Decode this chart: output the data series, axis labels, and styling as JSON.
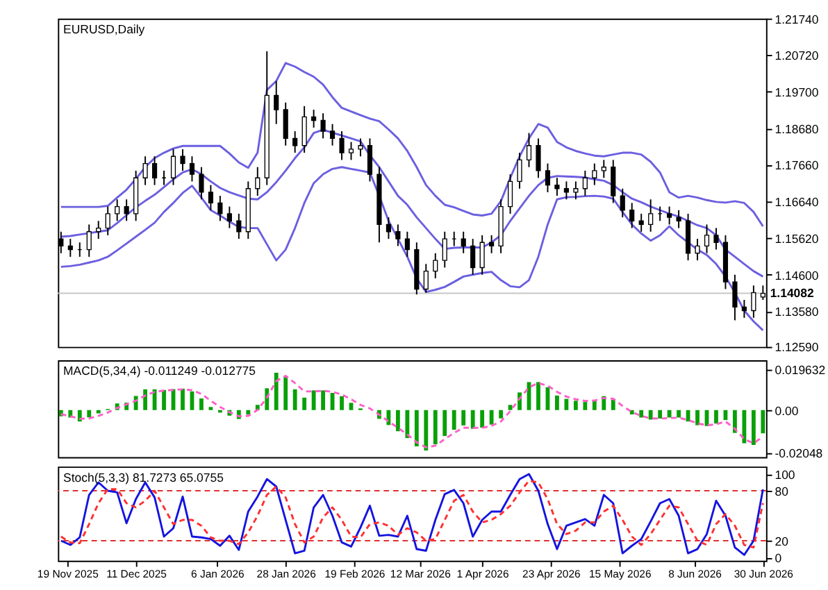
{
  "chart_data": [
    {
      "type": "candlestick",
      "title": "EURUSD,Daily",
      "x": [
        "2025-11-17",
        "2025-11-20",
        "2025-11-23",
        "2025-11-26",
        "2025-11-29",
        "2025-12-02",
        "2025-12-05",
        "2025-12-08",
        "2025-12-11",
        "2025-12-14",
        "2025-12-17",
        "2025-12-20",
        "2025-12-23",
        "2025-12-26",
        "2025-12-29",
        "2026-01-01",
        "2026-01-04",
        "2026-01-07",
        "2026-01-10",
        "2026-01-13",
        "2026-01-16",
        "2026-01-19",
        "2026-01-22",
        "2026-01-25",
        "2026-01-28",
        "2026-01-31",
        "2026-02-03",
        "2026-02-06",
        "2026-02-09",
        "2026-02-12",
        "2026-02-15",
        "2026-02-18",
        "2026-02-21",
        "2026-02-24",
        "2026-02-27",
        "2026-03-02",
        "2026-03-05",
        "2026-03-08",
        "2026-03-11",
        "2026-03-14",
        "2026-03-17",
        "2026-03-20",
        "2026-03-23",
        "2026-03-26",
        "2026-03-29",
        "2026-04-01",
        "2026-04-04",
        "2026-04-07",
        "2026-04-10",
        "2026-04-13",
        "2026-04-16",
        "2026-04-19",
        "2026-04-22",
        "2026-04-25",
        "2026-04-28",
        "2026-05-01",
        "2026-05-04",
        "2026-05-07",
        "2026-05-10",
        "2026-05-13",
        "2026-05-16",
        "2026-05-19",
        "2026-05-22",
        "2026-05-25",
        "2026-05-28",
        "2026-05-31",
        "2026-06-03",
        "2026-06-06",
        "2026-06-09",
        "2026-06-12",
        "2026-06-15",
        "2026-06-18",
        "2026-06-21",
        "2026-06-24",
        "2026-06-27",
        "2026-06-30"
      ],
      "xlim": [
        "2025-11-16",
        "2026-07-01"
      ],
      "ohlc": [
        [
          1.156,
          1.158,
          1.152,
          1.154
        ],
        [
          1.154,
          1.156,
          1.151,
          1.153
        ],
        [
          1.153,
          1.155,
          1.151,
          1.153
        ],
        [
          1.153,
          1.16,
          1.151,
          1.158
        ],
        [
          1.158,
          1.161,
          1.156,
          1.159
        ],
        [
          1.159,
          1.165,
          1.157,
          1.163
        ],
        [
          1.163,
          1.167,
          1.161,
          1.165
        ],
        [
          1.165,
          1.167,
          1.161,
          1.163
        ],
        [
          1.163,
          1.175,
          1.161,
          1.173
        ],
        [
          1.173,
          1.179,
          1.171,
          1.177
        ],
        [
          1.177,
          1.179,
          1.171,
          1.173
        ],
        [
          1.173,
          1.175,
          1.171,
          1.173
        ],
        [
          1.173,
          1.181,
          1.171,
          1.179
        ],
        [
          1.179,
          1.181,
          1.175,
          1.177
        ],
        [
          1.177,
          1.179,
          1.172,
          1.174
        ],
        [
          1.174,
          1.176,
          1.167,
          1.169
        ],
        [
          1.169,
          1.171,
          1.164,
          1.166
        ],
        [
          1.166,
          1.168,
          1.161,
          1.163
        ],
        [
          1.163,
          1.165,
          1.159,
          1.161
        ],
        [
          1.161,
          1.163,
          1.156,
          1.158
        ],
        [
          1.158,
          1.172,
          1.156,
          1.17
        ],
        [
          1.17,
          1.176,
          1.168,
          1.173
        ],
        [
          1.173,
          1.2083,
          1.171,
          1.196
        ],
        [
          1.196,
          1.2,
          1.188,
          1.192
        ],
        [
          1.192,
          1.194,
          1.182,
          1.184
        ],
        [
          1.184,
          1.186,
          1.18,
          1.182
        ],
        [
          1.182,
          1.193,
          1.18,
          1.19
        ],
        [
          1.19,
          1.192,
          1.187,
          1.189
        ],
        [
          1.189,
          1.191,
          1.184,
          1.186
        ],
        [
          1.186,
          1.188,
          1.182,
          1.184
        ],
        [
          1.184,
          1.186,
          1.178,
          1.18
        ],
        [
          1.18,
          1.183,
          1.178,
          1.181
        ],
        [
          1.181,
          1.184,
          1.179,
          1.182
        ],
        [
          1.182,
          1.184,
          1.172,
          1.174
        ],
        [
          1.174,
          1.176,
          1.155,
          1.16
        ],
        [
          1.16,
          1.162,
          1.156,
          1.158
        ],
        [
          1.158,
          1.16,
          1.154,
          1.156
        ],
        [
          1.156,
          1.158,
          1.151,
          1.153
        ],
        [
          1.153,
          1.155,
          1.1405,
          1.142
        ],
        [
          1.142,
          1.149,
          1.141,
          1.147
        ],
        [
          1.147,
          1.152,
          1.145,
          1.15
        ],
        [
          1.15,
          1.158,
          1.148,
          1.156
        ],
        [
          1.156,
          1.158,
          1.154,
          1.156
        ],
        [
          1.156,
          1.158,
          1.152,
          1.154
        ],
        [
          1.154,
          1.156,
          1.146,
          1.148
        ],
        [
          1.148,
          1.157,
          1.146,
          1.155
        ],
        [
          1.155,
          1.157,
          1.152,
          1.154
        ],
        [
          1.154,
          1.167,
          1.152,
          1.165
        ],
        [
          1.165,
          1.174,
          1.163,
          1.172
        ],
        [
          1.172,
          1.18,
          1.17,
          1.178
        ],
        [
          1.178,
          1.1855,
          1.176,
          1.182
        ],
        [
          1.182,
          1.184,
          1.173,
          1.175
        ],
        [
          1.175,
          1.177,
          1.169,
          1.171
        ],
        [
          1.171,
          1.173,
          1.168,
          1.17
        ],
        [
          1.17,
          1.172,
          1.167,
          1.169
        ],
        [
          1.169,
          1.172,
          1.167,
          1.17
        ],
        [
          1.17,
          1.175,
          1.168,
          1.173
        ],
        [
          1.173,
          1.177,
          1.171,
          1.175
        ],
        [
          1.175,
          1.178,
          1.173,
          1.176
        ],
        [
          1.176,
          1.178,
          1.166,
          1.168
        ],
        [
          1.168,
          1.17,
          1.162,
          1.164
        ],
        [
          1.164,
          1.166,
          1.159,
          1.161
        ],
        [
          1.161,
          1.163,
          1.158,
          1.16
        ],
        [
          1.16,
          1.167,
          1.158,
          1.163
        ],
        [
          1.163,
          1.165,
          1.161,
          1.163
        ],
        [
          1.163,
          1.165,
          1.16,
          1.162
        ],
        [
          1.162,
          1.164,
          1.159,
          1.161
        ],
        [
          1.161,
          1.163,
          1.15,
          1.152
        ],
        [
          1.152,
          1.156,
          1.15,
          1.154
        ],
        [
          1.154,
          1.16,
          1.152,
          1.157
        ],
        [
          1.157,
          1.159,
          1.153,
          1.155
        ],
        [
          1.155,
          1.157,
          1.142,
          1.144
        ],
        [
          1.144,
          1.146,
          1.1333,
          1.137
        ],
        [
          1.137,
          1.139,
          1.134,
          1.136
        ],
        [
          1.136,
          1.143,
          1.134,
          1.141
        ],
        [
          1.1398,
          1.143,
          1.139,
          1.1408
        ]
      ],
      "series": [
        {
          "type": "line",
          "color": "#6b5fe0",
          "values": [
            1.1649,
            1.1649,
            1.1649,
            1.1649,
            1.1649,
            1.1652,
            1.1675,
            1.1697,
            1.1727,
            1.176,
            1.1785,
            1.18,
            1.1812,
            1.1819,
            1.1819,
            1.1819,
            1.1819,
            1.1819,
            1.1798,
            1.1773,
            1.1758,
            1.18,
            1.1975,
            1.2,
            1.205,
            1.204,
            1.2025,
            1.2012,
            1.199,
            1.1955,
            1.1925,
            1.1915,
            1.1905,
            1.1895,
            1.1888,
            1.1865,
            1.184,
            1.1805,
            1.176,
            1.171,
            1.168,
            1.1655,
            1.1648,
            1.1638,
            1.1628,
            1.1625,
            1.163,
            1.1665,
            1.173,
            1.179,
            1.184,
            1.188,
            1.187,
            1.183,
            1.1815,
            1.1805,
            1.1798,
            1.1792,
            1.179,
            1.1795,
            1.18,
            1.18,
            1.1795,
            1.1775,
            1.1745,
            1.169,
            1.1675,
            1.168,
            1.1675,
            1.1668,
            1.1663,
            1.1661,
            1.1665,
            1.166,
            1.1635,
            1.1595
          ]
        },
        {
          "type": "line",
          "color": "#6b5fe0",
          "values": [
            1.1566,
            1.1568,
            1.1572,
            1.1576,
            1.158,
            1.1584,
            1.1604,
            1.1626,
            1.1648,
            1.1666,
            1.1683,
            1.1704,
            1.1726,
            1.1745,
            1.1754,
            1.174,
            1.172,
            1.1702,
            1.169,
            1.1681,
            1.1672,
            1.167,
            1.169,
            1.1718,
            1.175,
            1.1785,
            1.1815,
            1.1855,
            1.1864,
            1.1856,
            1.1848,
            1.184,
            1.1832,
            1.1793,
            1.176,
            1.172,
            1.168,
            1.1655,
            1.162,
            1.159,
            1.156,
            1.1532,
            1.1535,
            1.1536,
            1.1536,
            1.1536,
            1.155,
            1.157,
            1.161,
            1.1645,
            1.168,
            1.171,
            1.173,
            1.1735,
            1.1734,
            1.1733,
            1.1731,
            1.1726,
            1.1722,
            1.171,
            1.169,
            1.1672,
            1.1662,
            1.165,
            1.164,
            1.163,
            1.1622,
            1.161,
            1.1598,
            1.159,
            1.157,
            1.153,
            1.151,
            1.149,
            1.147,
            1.1455
          ]
        },
        {
          "type": "line",
          "color": "#6b5fe0",
          "values": [
            1.1482,
            1.1484,
            1.1488,
            1.1494,
            1.15,
            1.151,
            1.1528,
            1.1547,
            1.1566,
            1.1585,
            1.1605,
            1.1635,
            1.166,
            1.1688,
            1.1708,
            1.1675,
            1.164,
            1.1625,
            1.1608,
            1.1593,
            1.159,
            1.159,
            1.1545,
            1.15,
            1.153,
            1.159,
            1.166,
            1.1715,
            1.174,
            1.1755,
            1.176,
            1.1755,
            1.175,
            1.1745,
            1.168,
            1.161,
            1.156,
            1.151,
            1.145,
            1.1412,
            1.1418,
            1.1426,
            1.144,
            1.1455,
            1.146,
            1.1465,
            1.1468,
            1.1445,
            1.1428,
            1.1425,
            1.1445,
            1.151,
            1.16,
            1.167,
            1.1676,
            1.1677,
            1.1679,
            1.168,
            1.1678,
            1.1672,
            1.1635,
            1.16,
            1.1575,
            1.1555,
            1.157,
            1.1595,
            1.157,
            1.155,
            1.153,
            1.1515,
            1.149,
            1.1455,
            1.141,
            1.136,
            1.133,
            1.1305
          ]
        }
      ],
      "ylim": [
        1.1259,
        1.2174
      ],
      "yticks": [
        {
          "value": 1.2174,
          "label": "1.21740"
        },
        {
          "value": 1.2072,
          "label": "1.20720"
        },
        {
          "value": 1.197,
          "label": "1.19700"
        },
        {
          "value": 1.1868,
          "label": "1.18680"
        },
        {
          "value": 1.1766,
          "label": "1.17660"
        },
        {
          "value": 1.1664,
          "label": "1.16640"
        },
        {
          "value": 1.1562,
          "label": "1.15620"
        },
        {
          "value": 1.146,
          "label": "1.14600"
        },
        {
          "value": 1.1358,
          "label": "1.13580"
        },
        {
          "value": 1.1259,
          "label": "1.12590"
        }
      ],
      "ref_lines": [
        {
          "axis": "y",
          "value": 1.14082,
          "label": "1.14082",
          "color": "#c8c8c8"
        }
      ],
      "tick_labels": "y"
    },
    {
      "type": "bar",
      "title": "MACD(5,34,4) -0.011249 -0.012775",
      "x": [
        "2025-11-17",
        "2025-11-20",
        "2025-11-23",
        "2025-11-26",
        "2025-11-29",
        "2025-12-02",
        "2025-12-05",
        "2025-12-08",
        "2025-12-11",
        "2025-12-14",
        "2025-12-17",
        "2025-12-20",
        "2025-12-23",
        "2025-12-26",
        "2025-12-29",
        "2026-01-01",
        "2026-01-04",
        "2026-01-07",
        "2026-01-10",
        "2026-01-13",
        "2026-01-16",
        "2026-01-19",
        "2026-01-22",
        "2026-01-25",
        "2026-01-28",
        "2026-01-31",
        "2026-02-03",
        "2026-02-06",
        "2026-02-09",
        "2026-02-12",
        "2026-02-15",
        "2026-02-18",
        "2026-02-21",
        "2026-02-24",
        "2026-02-27",
        "2026-03-02",
        "2026-03-05",
        "2026-03-08",
        "2026-03-11",
        "2026-03-14",
        "2026-03-17",
        "2026-03-20",
        "2026-03-23",
        "2026-03-26",
        "2026-03-29",
        "2026-04-01",
        "2026-04-04",
        "2026-04-07",
        "2026-04-10",
        "2026-04-13",
        "2026-04-16",
        "2026-04-19",
        "2026-04-22",
        "2026-04-25",
        "2026-04-28",
        "2026-05-01",
        "2026-05-04",
        "2026-05-07",
        "2026-05-10",
        "2026-05-13",
        "2026-05-16",
        "2026-05-19",
        "2026-05-22",
        "2026-05-25",
        "2026-05-28",
        "2026-05-31",
        "2026-06-03",
        "2026-06-06",
        "2026-06-09",
        "2026-06-12",
        "2026-06-15",
        "2026-06-18",
        "2026-06-21",
        "2026-06-24",
        "2026-06-27",
        "2026-06-30"
      ],
      "xlim": [
        "2025-11-16",
        "2026-07-01"
      ],
      "series": [
        {
          "type": "bar",
          "color": "#08a008",
          "values": [
            -0.003,
            -0.0036,
            -0.0055,
            -0.0035,
            -0.0016,
            0.0005,
            0.0032,
            0.0036,
            0.0068,
            0.01,
            0.01,
            0.0097,
            0.0101,
            0.0103,
            0.009,
            0.0056,
            0.0015,
            -0.0012,
            -0.0027,
            -0.0043,
            -0.0022,
            0.0025,
            0.0105,
            0.018,
            0.016,
            0.01,
            0.006,
            0.0095,
            0.0095,
            0.0083,
            0.0067,
            0.0035,
            0.0008,
            0.0,
            -0.0042,
            -0.0072,
            -0.0102,
            -0.0135,
            -0.0175,
            -0.0195,
            -0.0165,
            -0.0125,
            -0.0095,
            -0.0074,
            -0.009,
            -0.0085,
            -0.007,
            -0.004,
            0.0025,
            0.0085,
            0.0135,
            0.0135,
            0.011,
            0.007,
            0.0054,
            0.0045,
            0.0039,
            0.0048,
            0.0067,
            0.005,
            null,
            -0.0021,
            -0.0036,
            -0.0046,
            -0.0041,
            -0.0036,
            -0.0036,
            -0.0055,
            -0.0073,
            -0.0077,
            -0.0065,
            -0.0048,
            -0.011,
            -0.016,
            -0.0168,
            -0.0112
          ]
        },
        {
          "type": "line",
          "color": "#ff5fc8",
          "line_style": "dashed",
          "values": [
            -0.002,
            -0.003,
            -0.0042,
            -0.004,
            -0.0028,
            -0.0012,
            0.001,
            0.0028,
            0.0045,
            0.007,
            0.0088,
            0.0094,
            0.0097,
            0.01,
            0.0096,
            0.0078,
            0.0045,
            0.0015,
            -0.001,
            -0.003,
            -0.0028,
            0.0,
            0.006,
            0.014,
            0.0165,
            0.013,
            0.009,
            0.009,
            0.0093,
            0.0088,
            0.0075,
            0.0052,
            0.0025,
            0.0008,
            -0.0022,
            -0.0055,
            -0.0085,
            -0.0118,
            -0.0155,
            -0.018,
            -0.0172,
            -0.014,
            -0.011,
            -0.0085,
            -0.0085,
            -0.0086,
            -0.0076,
            -0.0055,
            -0.0005,
            0.0055,
            0.011,
            0.013,
            0.0118,
            0.0088,
            0.0065,
            0.0052,
            0.0044,
            0.0046,
            0.0058,
            0.0055,
            0.002,
            -0.001,
            -0.0028,
            -0.004,
            -0.0041,
            -0.0038,
            -0.0037,
            -0.0048,
            -0.0064,
            -0.0073,
            -0.0069,
            -0.0055,
            -0.009,
            -0.014,
            -0.016,
            -0.0128
          ]
        }
      ],
      "ylim": [
        -0.0227,
        0.024
      ],
      "yticks": [
        0.019632,
        {
          "value": 0,
          "label": "0.00"
        },
        -0.02048
      ],
      "tick_labels": "y"
    },
    {
      "type": "line",
      "title": "Stoch(5,3,3) 81.7273 65.0755",
      "x": [
        "2025-11-17",
        "2025-11-20",
        "2025-11-23",
        "2025-11-26",
        "2025-11-29",
        "2025-12-02",
        "2025-12-05",
        "2025-12-08",
        "2025-12-11",
        "2025-12-14",
        "2025-12-17",
        "2025-12-20",
        "2025-12-23",
        "2025-12-26",
        "2025-12-29",
        "2026-01-01",
        "2026-01-04",
        "2026-01-07",
        "2026-01-10",
        "2026-01-13",
        "2026-01-16",
        "2026-01-19",
        "2026-01-22",
        "2026-01-25",
        "2026-01-28",
        "2026-01-31",
        "2026-02-03",
        "2026-02-06",
        "2026-02-09",
        "2026-02-12",
        "2026-02-15",
        "2026-02-18",
        "2026-02-21",
        "2026-02-24",
        "2026-02-27",
        "2026-03-02",
        "2026-03-05",
        "2026-03-08",
        "2026-03-11",
        "2026-03-14",
        "2026-03-17",
        "2026-03-20",
        "2026-03-23",
        "2026-03-26",
        "2026-03-29",
        "2026-04-01",
        "2026-04-04",
        "2026-04-07",
        "2026-04-10",
        "2026-04-13",
        "2026-04-16",
        "2026-04-19",
        "2026-04-22",
        "2026-04-25",
        "2026-04-28",
        "2026-05-01",
        "2026-05-04",
        "2026-05-07",
        "2026-05-10",
        "2026-05-13",
        "2026-05-16",
        "2026-05-19",
        "2026-05-22",
        "2026-05-25",
        "2026-05-28",
        "2026-05-31",
        "2026-06-03",
        "2026-06-06",
        "2026-06-09",
        "2026-06-12",
        "2026-06-15",
        "2026-06-18",
        "2026-06-21",
        "2026-06-24",
        "2026-06-27",
        "2026-06-30"
      ],
      "xlim": [
        "2025-11-16",
        "2026-07-01"
      ],
      "xticks": [
        {
          "value": "2025-11-19",
          "label": "19 Nov 2025"
        },
        {
          "value": "2025-12-11",
          "label": "11 Dec 2025"
        },
        {
          "value": "2026-01-06",
          "label": "6 Jan 2026"
        },
        {
          "value": "2026-01-28",
          "label": "28 Jan 2026"
        },
        {
          "value": "2026-02-19",
          "label": "19 Feb 2026"
        },
        {
          "value": "2026-03-12",
          "label": "12 Mar 2026"
        },
        {
          "value": "2026-04-01",
          "label": "1 Apr 2026"
        },
        {
          "value": "2026-04-23",
          "label": "23 Apr 2026"
        },
        {
          "value": "2026-05-15",
          "label": "15 May 2026"
        },
        {
          "value": "2026-06-08",
          "label": "8 Jun 2026"
        },
        {
          "value": "2026-06-30",
          "label": "30 Jun 2026"
        }
      ],
      "series": [
        {
          "color": "#1414e0",
          "values": [
            20,
            15,
            24,
            75,
            90,
            80,
            78,
            41,
            70,
            90,
            72,
            25,
            35,
            73,
            25,
            24,
            22,
            14,
            26,
            9,
            55,
            73,
            94,
            85,
            45,
            5,
            8,
            60,
            75,
            50,
            18,
            13,
            36,
            62,
            26,
            27,
            25,
            50,
            10,
            8,
            45,
            76,
            81,
            65,
            25,
            45,
            55,
            55,
            75,
            94,
            100,
            80,
            40,
            10,
            38,
            42,
            46,
            38,
            75,
            65,
            5,
            14,
            22,
            43,
            65,
            70,
            50,
            5,
            10,
            28,
            68,
            50,
            12,
            3,
            20,
            81.7
          ]
        },
        {
          "color": "#ff3030",
          "line_style": "dashed",
          "values": [
            25,
            18,
            17,
            40,
            65,
            82,
            82,
            65,
            60,
            68,
            80,
            60,
            40,
            45,
            45,
            38,
            24,
            20,
            20,
            16,
            30,
            50,
            75,
            85,
            72,
            40,
            18,
            25,
            48,
            60,
            45,
            25,
            24,
            40,
            42,
            38,
            27,
            35,
            30,
            20,
            22,
            45,
            68,
            75,
            55,
            42,
            45,
            52,
            62,
            78,
            92,
            90,
            70,
            40,
            28,
            32,
            42,
            42,
            55,
            62,
            45,
            25,
            15,
            28,
            45,
            62,
            60,
            40,
            20,
            15,
            40,
            52,
            38,
            15,
            12,
            65.1
          ]
        }
      ],
      "ylim": [
        -4,
        109
      ],
      "yticks": [
        0,
        20,
        80,
        100
      ],
      "ref_lines": [
        {
          "axis": "y",
          "value": 80,
          "color": "#e03030",
          "line_style": "dashed"
        },
        {
          "axis": "y",
          "value": 20,
          "color": "#e03030",
          "line_style": "dashed"
        }
      ]
    }
  ]
}
